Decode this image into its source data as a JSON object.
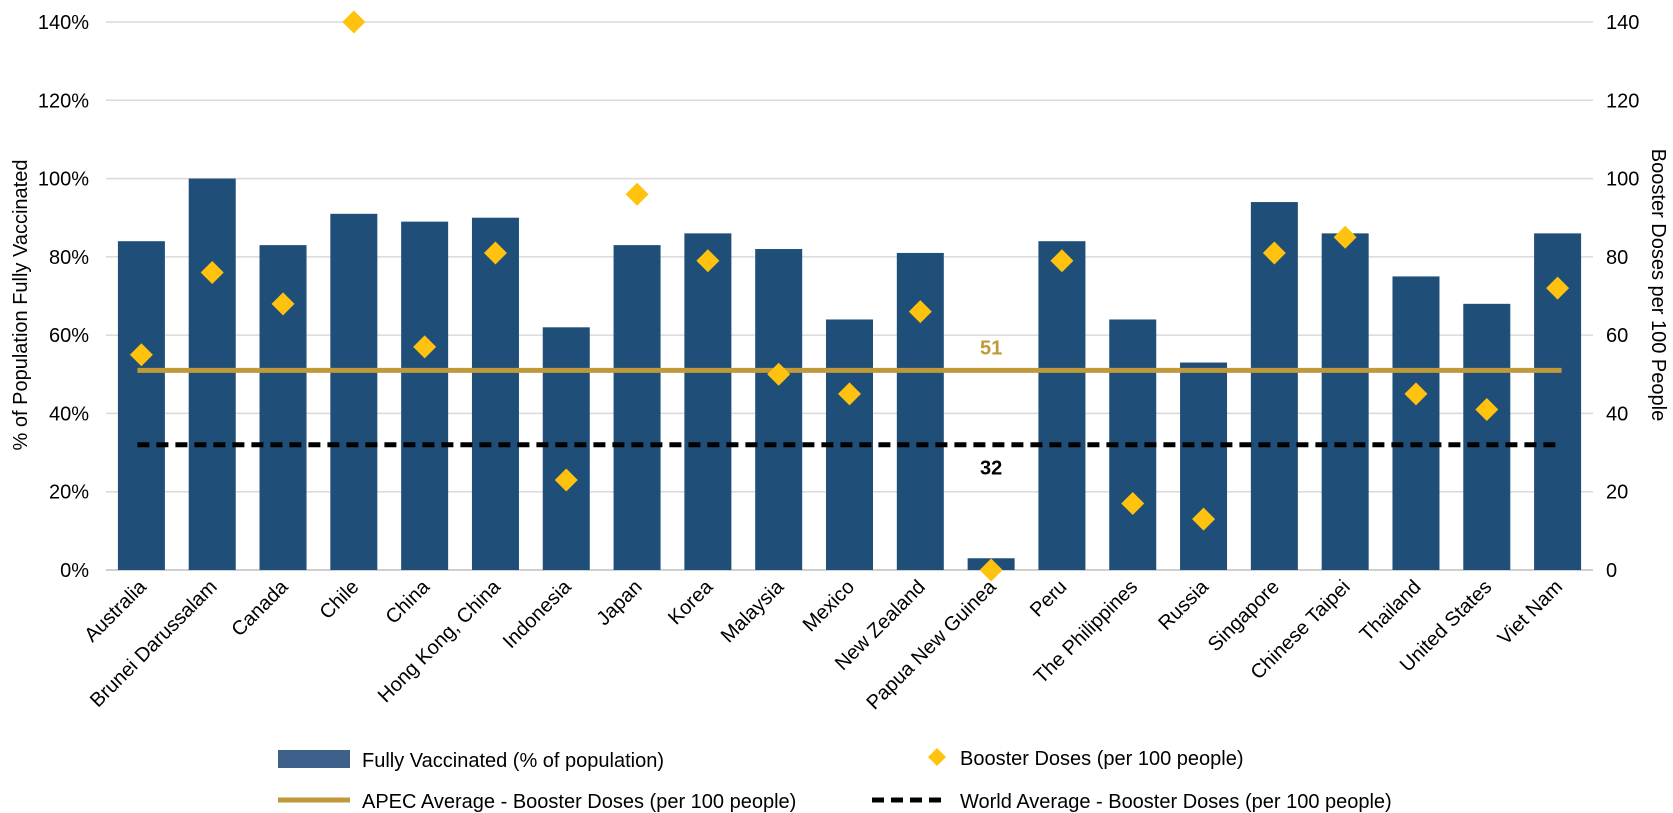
{
  "chart_data": {
    "type": "bar",
    "categories": [
      "Australia",
      "Brunei Darussalam",
      "Canada",
      "Chile",
      "China",
      "Hong Kong, China",
      "Indonesia",
      "Japan",
      "Korea",
      "Malaysia",
      "Mexico",
      "New Zealand",
      "Papua New Guinea",
      "Peru",
      "The Philippines",
      "Russia",
      "Singapore",
      "Chinese Taipei",
      "Thailand",
      "United States",
      "Viet Nam"
    ],
    "series": [
      {
        "name": "Fully Vaccinated (% of population)",
        "kind": "bar",
        "axis": "left",
        "color": "#1f4e79",
        "values": [
          84,
          100,
          83,
          91,
          89,
          90,
          62,
          83,
          86,
          82,
          64,
          81,
          3,
          84,
          64,
          53,
          94,
          86,
          75,
          68,
          86
        ]
      },
      {
        "name": "Booster Doses (per 100 people)",
        "kind": "marker",
        "axis": "right",
        "color": "#ffc20e",
        "values": [
          55,
          76,
          68,
          140,
          57,
          81,
          23,
          96,
          79,
          50,
          45,
          66,
          0,
          79,
          17,
          13,
          81,
          85,
          45,
          41,
          72
        ]
      }
    ],
    "reference_lines": [
      {
        "name": "APEC Average - Booster Doses (per 100 people)",
        "value": 51,
        "label": "51",
        "axis": "right",
        "color": "#c09a3a",
        "style": "solid"
      },
      {
        "name": "World Average - Booster Doses (per 100 people)",
        "value": 32,
        "label": "32",
        "axis": "right",
        "color": "#000000",
        "style": "dashed"
      }
    ],
    "ylabel": "% of Population Fully Vaccinated",
    "y2label": "Booster Doses per 100 People",
    "ylim": [
      0,
      140
    ],
    "y2lim": [
      0,
      140
    ],
    "yticks": [
      "0%",
      "20%",
      "40%",
      "60%",
      "80%",
      "100%",
      "120%",
      "140%"
    ],
    "y2ticks": [
      "0",
      "20",
      "40",
      "60",
      "80",
      "100",
      "120",
      "140"
    ],
    "grid": true,
    "legend_position": "bottom"
  }
}
